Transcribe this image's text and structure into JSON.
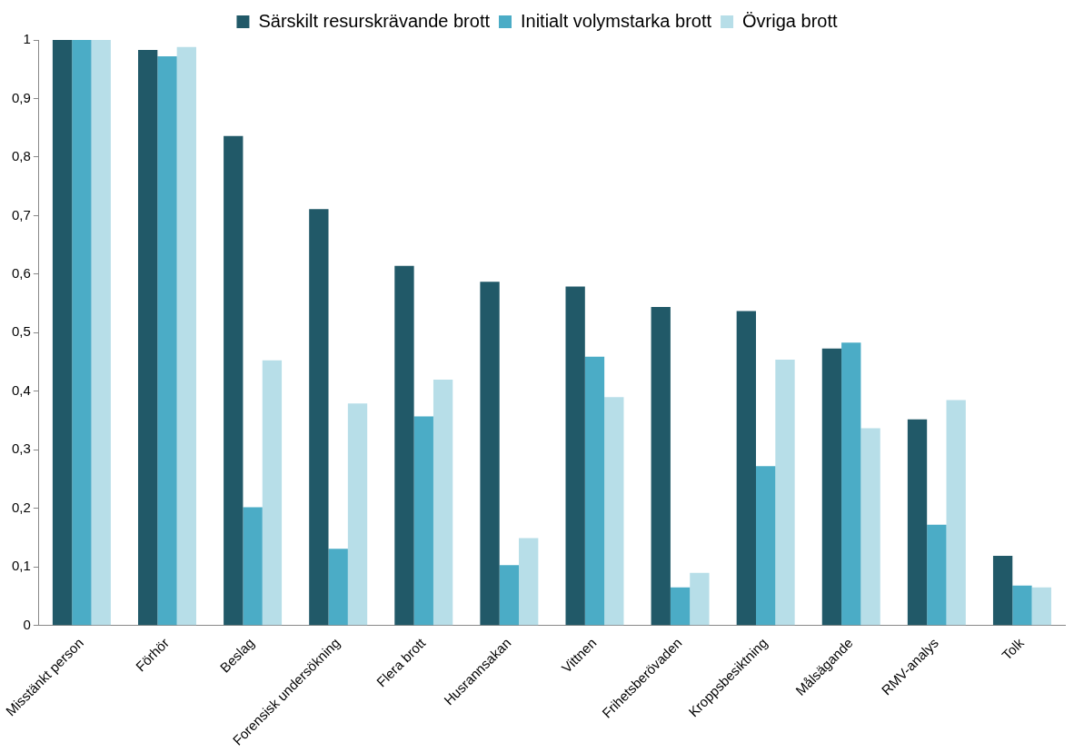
{
  "chart_data": {
    "type": "bar",
    "categories": [
      "Misstänkt person",
      "Förhör",
      "Beslag",
      "Forensisk undersökning",
      "Flera brott",
      "Husrannsakan",
      "Vittnen",
      "Frihetsberövaden",
      "Kroppsbesiktning",
      "Målsägande",
      "RMV-analys",
      "Tolk"
    ],
    "series": [
      {
        "name": "Särskilt resurskrävande brott",
        "color": "#215968",
        "values": [
          1,
          0.983,
          0.836,
          0.711,
          0.614,
          0.587,
          0.579,
          0.544,
          0.537,
          0.473,
          0.352,
          0.119
        ]
      },
      {
        "name": "Initialt volymstarka brott",
        "color": "#4bacc6",
        "values": [
          1,
          0.972,
          0.202,
          0.131,
          0.357,
          0.103,
          0.459,
          0.065,
          0.272,
          0.483,
          0.172,
          0.068
        ]
      },
      {
        "name": "Övriga brott",
        "color": "#b7dee8",
        "values": [
          1,
          0.988,
          0.453,
          0.379,
          0.42,
          0.149,
          0.39,
          0.09,
          0.454,
          0.337,
          0.385,
          0.065
        ]
      }
    ],
    "ylim": [
      0,
      1
    ],
    "yticks": [
      0,
      {
        "value": 0.1,
        "label": "0,1"
      },
      {
        "value": 0.2,
        "label": "0,2"
      },
      {
        "value": 0.3,
        "label": "0,3"
      },
      {
        "value": 0.4,
        "label": "0,4"
      },
      {
        "value": 0.5,
        "label": "0,5"
      },
      {
        "value": 0.6,
        "label": "0,6"
      },
      {
        "value": 0.7,
        "label": "0,7"
      },
      {
        "value": 0.8,
        "label": "0,8"
      },
      {
        "value": 0.9,
        "label": "0,9"
      },
      1
    ],
    "grid": false,
    "legend": "top"
  }
}
